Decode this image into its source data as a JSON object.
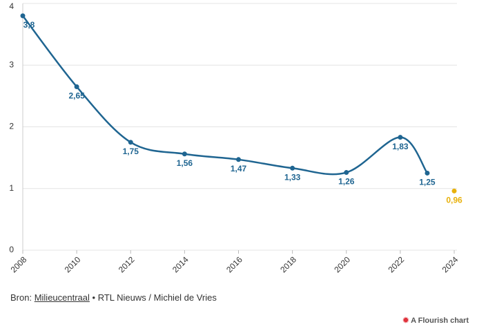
{
  "chart_data": {
    "type": "line",
    "yticks": [
      0,
      1,
      2,
      3,
      4
    ],
    "ylim": [
      0,
      4
    ],
    "xticks": [
      2008,
      2010,
      2012,
      2014,
      2016,
      2018,
      2020,
      2022,
      2024
    ],
    "xlim": [
      2008,
      2024
    ],
    "grid": true,
    "series": [
      {
        "color": "#1f6591",
        "x": [
          2008,
          2010,
          2012,
          2014,
          2016,
          2018,
          2020,
          2022,
          2023
        ],
        "values": [
          3.8,
          2.65,
          1.75,
          1.56,
          1.47,
          1.33,
          1.26,
          1.83,
          1.25
        ],
        "value_labels": [
          "3,8",
          "2,65",
          "1,75",
          "1,56",
          "1,47",
          "1,33",
          "1,26",
          "1,83",
          "1,25"
        ]
      },
      {
        "color": "#e8b10c",
        "x": [
          2024
        ],
        "values": [
          0.96
        ],
        "value_labels": [
          "0,96"
        ]
      }
    ]
  },
  "footer": {
    "prefix": "Bron:",
    "link": "Milieucentraal",
    "rest": "• RTL Nieuws / Michiel de Vries",
    "credit": "A Flourish chart"
  }
}
